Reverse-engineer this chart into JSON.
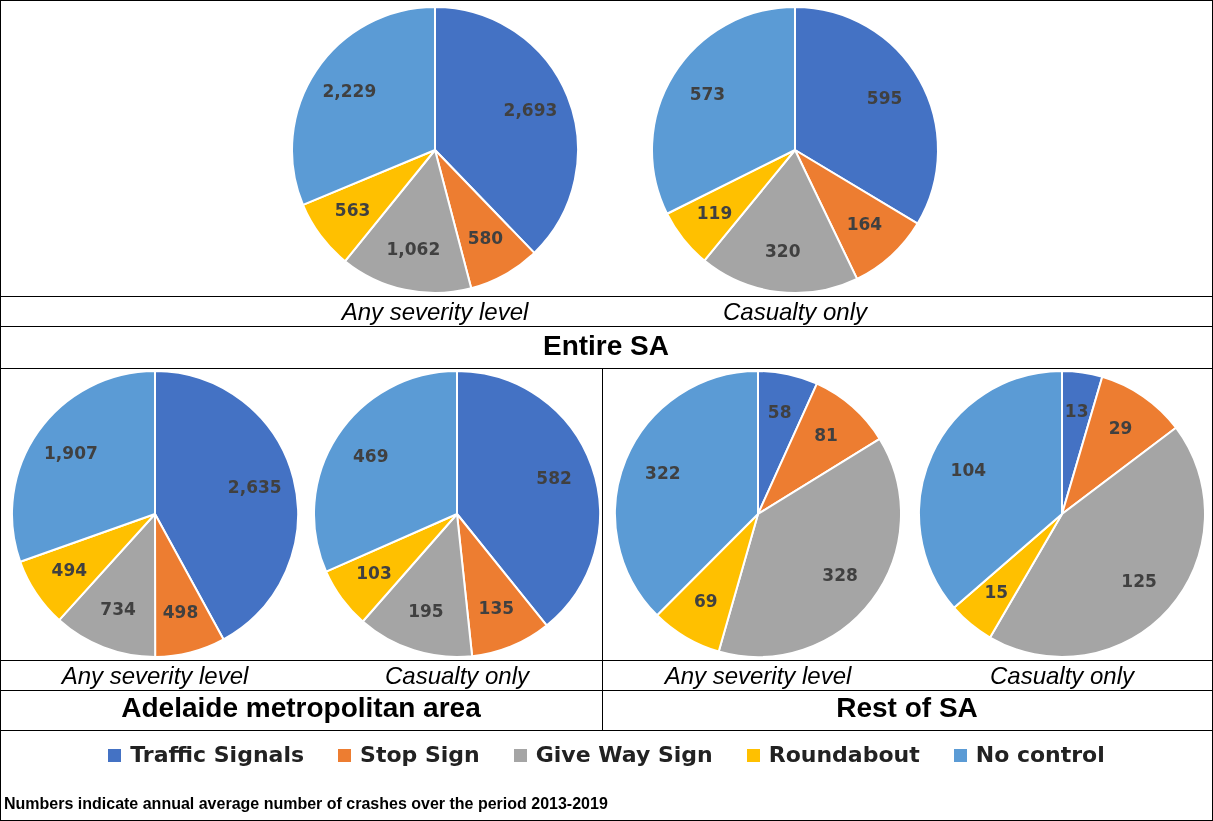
{
  "chart_data": [
    {
      "type": "pie",
      "title": "Entire SA",
      "xlabel": "Any severity level",
      "categories": [
        "Traffic Signals",
        "Stop Sign",
        "Give Way Sign",
        "Roundabout",
        "No control"
      ],
      "values": [
        2693,
        580,
        1062,
        563,
        2229
      ],
      "value_labels": [
        "2,693",
        "580",
        "1,062",
        "563",
        "2,229"
      ],
      "colors": [
        "#4472c4",
        "#ed7d31",
        "#a5a5a5",
        "#ffc000",
        "#5b9bd5"
      ],
      "legend": "bottom",
      "annotations": [
        "Numbers indicate annual average number of crashes over the period 2013-2019"
      ]
    },
    {
      "type": "pie",
      "xlabel": "Casualty only",
      "categories": [
        null,
        null,
        null,
        null,
        null
      ],
      "values": [
        595,
        164,
        320,
        119,
        573
      ],
      "value_labels": [
        "595",
        "164",
        "320",
        "119",
        "573"
      ],
      "colors": [
        "#4472c4",
        "#ed7d31",
        "#a5a5a5",
        "#ffc000",
        "#5b9bd5"
      ]
    },
    {
      "type": "pie",
      "title": "Adelaide metropolitan area",
      "xlabel": "Any severity level",
      "categories": [
        null,
        null,
        null,
        null,
        null
      ],
      "values": [
        2635,
        498,
        734,
        494,
        1907
      ],
      "value_labels": [
        "2,635",
        "498",
        "734",
        "494",
        "1,907"
      ],
      "colors": [
        "#4472c4",
        "#ed7d31",
        "#a5a5a5",
        "#ffc000",
        "#5b9bd5"
      ]
    },
    {
      "type": "pie",
      "xlabel": "Casualty only",
      "categories": [
        null,
        null,
        null,
        null,
        null
      ],
      "values": [
        582,
        135,
        195,
        103,
        469
      ],
      "value_labels": [
        "582",
        "135",
        "195",
        "103",
        "469"
      ],
      "colors": [
        "#4472c4",
        "#ed7d31",
        "#a5a5a5",
        "#ffc000",
        "#5b9bd5"
      ]
    },
    {
      "type": "pie",
      "title": "Rest of SA",
      "xlabel": "Any severity level",
      "categories": [
        null,
        null,
        null,
        null,
        null
      ],
      "values": [
        58,
        81,
        328,
        69,
        322
      ],
      "value_labels": [
        "58",
        "81",
        "328",
        "69",
        "322"
      ],
      "colors": [
        "#4472c4",
        "#ed7d31",
        "#a5a5a5",
        "#ffc000",
        "#5b9bd5"
      ]
    },
    {
      "type": "pie",
      "xlabel": "Casualty only",
      "categories": [
        null,
        null,
        null,
        null,
        null
      ],
      "values": [
        13,
        29,
        125,
        15,
        104
      ],
      "value_labels": [
        "13",
        "29",
        "125",
        "15",
        "104"
      ],
      "colors": [
        "#4472c4",
        "#ed7d31",
        "#a5a5a5",
        "#ffc000",
        "#5b9bd5"
      ]
    }
  ]
}
